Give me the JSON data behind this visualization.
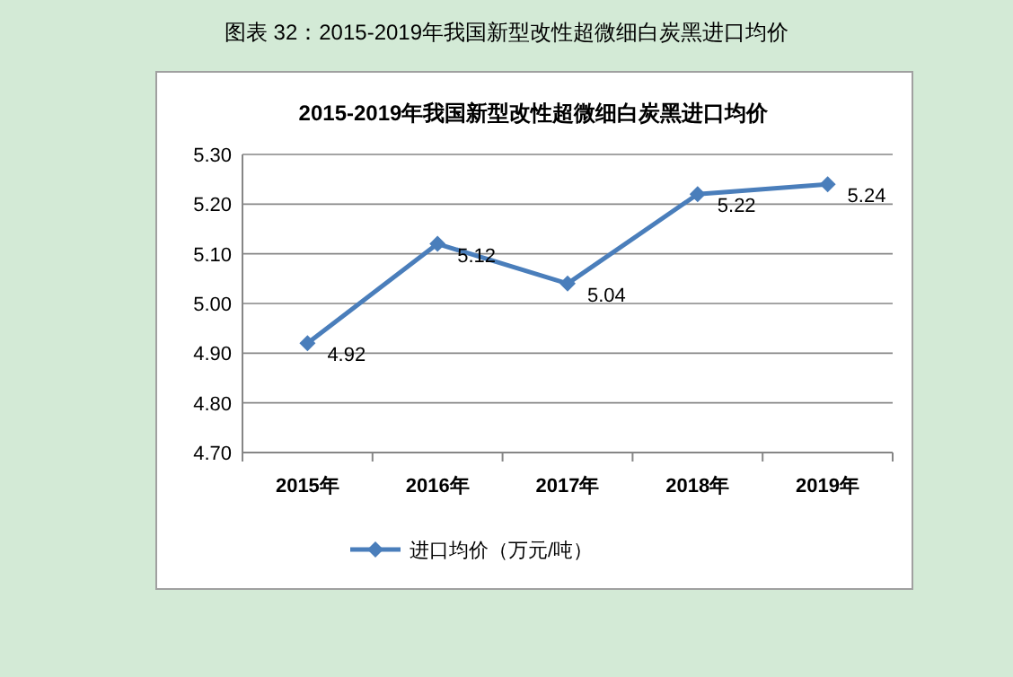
{
  "chart_data": {
    "type": "line",
    "title": "图表  32：2015-2019年我国新型改性超微细白炭黑进口均价",
    "subtitle": "2015-2019年我国新型改性超微细白炭黑进口均价",
    "categories": [
      "2015年",
      "2016年",
      "2017年",
      "2018年",
      "2019年"
    ],
    "series": [
      {
        "name": "进口均价（万元/吨）",
        "color": "#4a7ebb",
        "values": [
          4.92,
          5.12,
          5.04,
          5.22,
          5.24
        ]
      }
    ],
    "ylim": [
      4.7,
      5.3
    ],
    "yticks": [
      {
        "value": 4.7,
        "label": "4.70"
      },
      {
        "value": 4.8,
        "label": "4.80"
      },
      {
        "value": 4.9,
        "label": "4.90"
      },
      {
        "value": 5.0,
        "label": "5.00"
      },
      {
        "value": 5.1,
        "label": "5.10"
      },
      {
        "value": 5.2,
        "label": "5.20"
      },
      {
        "value": 5.3,
        "label": "5.30"
      }
    ],
    "grid": "y",
    "legend": "bottom",
    "marker": "diamond",
    "line_style": "solid",
    "data_labels": true
  }
}
